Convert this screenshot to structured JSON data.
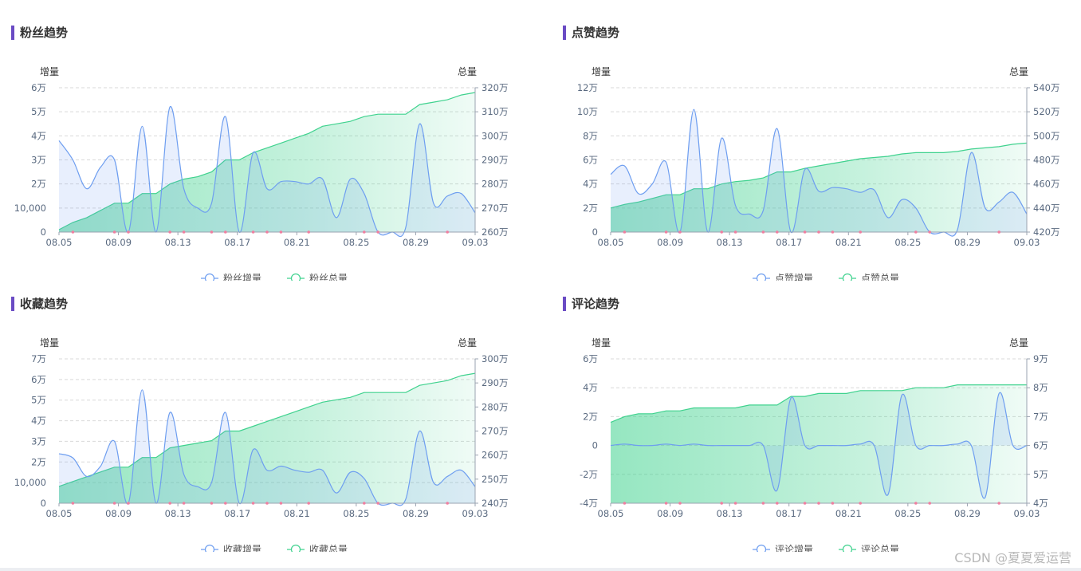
{
  "watermark": "CSDN @夏夏爱运营",
  "colors": {
    "increment": "#6e9ef0",
    "total": "#3fd28e",
    "marker": "#f07fa0",
    "accent": "#6a4bc4"
  },
  "chart_data": [
    {
      "id": "fans",
      "type": "line",
      "title": "粉丝趋势",
      "ylabel_left": "增量",
      "ylabel_right": "总量",
      "x_ticks": [
        "08.05",
        "08.09",
        "08.13",
        "08.17",
        "08.21",
        "08.25",
        "08.29",
        "09.03"
      ],
      "left_ticks": [
        "0",
        "10,000",
        "2万",
        "3万",
        "4万",
        "5万",
        "6万"
      ],
      "right_ticks": [
        "260万",
        "270万",
        "280万",
        "290万",
        "300万",
        "310万",
        "320万"
      ],
      "left_range": [
        0,
        60000
      ],
      "right_range": [
        2600000,
        3200000
      ],
      "legend": [
        "粉丝增量",
        "粉丝总量"
      ],
      "series": [
        {
          "name": "粉丝增量",
          "values": [
            38000,
            30000,
            18000,
            27000,
            30000,
            0,
            44000,
            0,
            52000,
            18000,
            10000,
            12000,
            48000,
            0,
            33000,
            18000,
            21000,
            21000,
            20000,
            22000,
            6000,
            22000,
            16000,
            0,
            0,
            2000,
            45000,
            12000,
            15000,
            16000,
            8000
          ]
        },
        {
          "name": "粉丝总量",
          "values": [
            2610000,
            2640000,
            2660000,
            2690000,
            2720000,
            2720000,
            2760000,
            2760000,
            2800000,
            2820000,
            2830000,
            2850000,
            2900000,
            2900000,
            2930000,
            2950000,
            2970000,
            2990000,
            3010000,
            3040000,
            3050000,
            3060000,
            3080000,
            3090000,
            3090000,
            3090000,
            3130000,
            3140000,
            3150000,
            3170000,
            3180000
          ]
        }
      ]
    },
    {
      "id": "likes",
      "type": "line",
      "title": "点赞趋势",
      "ylabel_left": "增量",
      "ylabel_right": "总量",
      "x_ticks": [
        "08.05",
        "08.09",
        "08.13",
        "08.17",
        "08.21",
        "08.25",
        "08.29",
        "09.03"
      ],
      "left_ticks": [
        "0",
        "2万",
        "4万",
        "6万",
        "8万",
        "10万",
        "12万"
      ],
      "right_ticks": [
        "420万",
        "440万",
        "460万",
        "480万",
        "500万",
        "520万",
        "540万"
      ],
      "left_range": [
        0,
        120000
      ],
      "right_range": [
        4200000,
        5400000
      ],
      "legend": [
        "点赞增量",
        "点赞总量"
      ],
      "series": [
        {
          "name": "点赞增量",
          "values": [
            48000,
            55000,
            32000,
            40000,
            58000,
            0,
            102000,
            0,
            78000,
            22000,
            15000,
            18000,
            86000,
            0,
            52000,
            34000,
            37000,
            36000,
            33000,
            35000,
            12000,
            27000,
            20000,
            0,
            0,
            2000,
            66000,
            20000,
            25000,
            33000,
            15000
          ]
        },
        {
          "name": "点赞总量",
          "values": [
            4400000,
            4430000,
            4450000,
            4480000,
            4510000,
            4510000,
            4560000,
            4560000,
            4600000,
            4620000,
            4630000,
            4650000,
            4700000,
            4700000,
            4730000,
            4750000,
            4770000,
            4790000,
            4810000,
            4820000,
            4830000,
            4850000,
            4860000,
            4860000,
            4860000,
            4870000,
            4890000,
            4900000,
            4910000,
            4930000,
            4940000
          ]
        }
      ]
    },
    {
      "id": "favorites",
      "type": "line",
      "title": "收藏趋势",
      "ylabel_left": "增量",
      "ylabel_right": "总量",
      "x_ticks": [
        "08.05",
        "08.09",
        "08.13",
        "08.17",
        "08.21",
        "08.25",
        "08.29",
        "09.03"
      ],
      "left_ticks": [
        "0",
        "10,000",
        "2万",
        "3万",
        "4万",
        "5万",
        "6万",
        "7万"
      ],
      "right_ticks": [
        "240万",
        "250万",
        "260万",
        "270万",
        "280万",
        "290万",
        "300万"
      ],
      "left_range": [
        0,
        70000
      ],
      "right_range": [
        2400000,
        3000000
      ],
      "legend": [
        "收藏增量",
        "收藏总量"
      ],
      "series": [
        {
          "name": "收藏增量",
          "values": [
            24000,
            22000,
            13000,
            18000,
            30000,
            0,
            55000,
            0,
            44000,
            14000,
            8000,
            10000,
            44000,
            0,
            26000,
            16000,
            18000,
            16000,
            15000,
            16000,
            5000,
            15000,
            12000,
            0,
            0,
            2000,
            35000,
            10000,
            13000,
            16000,
            8000
          ]
        },
        {
          "name": "收藏总量",
          "values": [
            2470000,
            2490000,
            2510000,
            2530000,
            2550000,
            2550000,
            2590000,
            2590000,
            2630000,
            2640000,
            2650000,
            2660000,
            2700000,
            2700000,
            2720000,
            2740000,
            2760000,
            2780000,
            2800000,
            2820000,
            2830000,
            2840000,
            2860000,
            2860000,
            2860000,
            2860000,
            2890000,
            2900000,
            2910000,
            2930000,
            2940000
          ]
        }
      ]
    },
    {
      "id": "comments",
      "type": "line",
      "title": "评论趋势",
      "ylabel_left": "增量",
      "ylabel_right": "总量",
      "x_ticks": [
        "08.05",
        "08.09",
        "08.13",
        "08.17",
        "08.21",
        "08.25",
        "08.29",
        "09.03"
      ],
      "left_ticks": [
        "-4万",
        "-2万",
        "0",
        "2万",
        "4万",
        "6万"
      ],
      "right_ticks": [
        "4万",
        "5万",
        "6万",
        "7万",
        "8万",
        "9万"
      ],
      "left_range": [
        -40000,
        60000
      ],
      "right_range": [
        40000,
        90000
      ],
      "legend": [
        "评论增量",
        "评论总量"
      ],
      "series": [
        {
          "name": "评论增量",
          "values": [
            0,
            1000,
            0,
            0,
            1000,
            0,
            1000,
            0,
            0,
            0,
            0,
            0,
            -31000,
            33000,
            0,
            0,
            0,
            0,
            1000,
            0,
            -34000,
            35000,
            0,
            0,
            0,
            1000,
            0,
            -36000,
            36000,
            0,
            0
          ]
        },
        {
          "name": "评论总量",
          "values": [
            68000,
            70000,
            71000,
            71000,
            72000,
            72000,
            73000,
            73000,
            73000,
            73000,
            74000,
            74000,
            74000,
            77000,
            77000,
            78000,
            78000,
            78000,
            79000,
            79000,
            79000,
            79000,
            80000,
            80000,
            80000,
            81000,
            81000,
            81000,
            81000,
            81000,
            81000
          ]
        }
      ]
    }
  ]
}
